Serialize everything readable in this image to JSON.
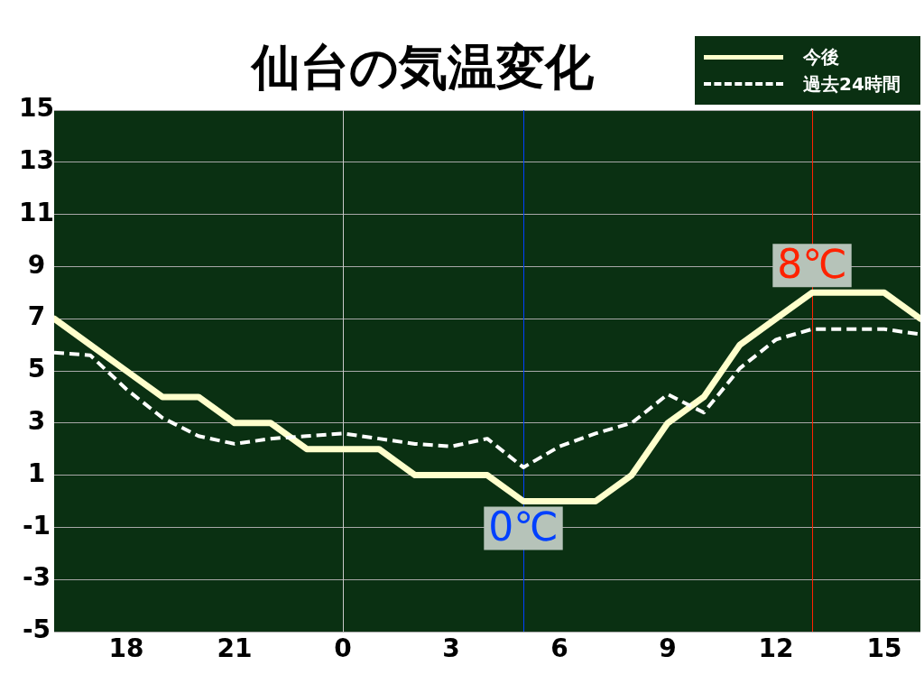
{
  "chart_data": {
    "type": "line",
    "title": "仙台の気温変化",
    "x": [
      "--01-01T16:00",
      "--01-01T17:00",
      "--01-01T18:00",
      "--01-01T19:00",
      "--01-01T20:00",
      "--01-01T21:00",
      "--01-01T22:00",
      "--01-01T23:00",
      "--01-02T00:00",
      "--01-02T01:00",
      "--01-02T02:00",
      "--01-02T03:00",
      "--01-02T04:00",
      "--01-02T05:00",
      "--01-02T06:00",
      "--01-02T07:00",
      "--01-02T08:00",
      "--01-02T09:00",
      "--01-02T10:00",
      "--01-02T11:00",
      "--01-02T12:00",
      "--01-02T13:00",
      "--01-02T14:00",
      "--01-02T15:00",
      "--01-02T16:00"
    ],
    "series": [
      {
        "name": "今後",
        "color": "#ffffcc",
        "values": [
          7,
          6,
          5,
          4,
          4,
          3,
          3,
          2,
          2,
          2,
          1,
          1,
          1,
          0,
          0,
          0,
          1,
          3,
          4,
          6,
          7,
          8,
          8,
          8,
          7
        ]
      },
      {
        "name": "過去24時間",
        "color": "#ffffff",
        "line_style": "dashed",
        "values": [
          5.7,
          5.6,
          4.3,
          3.2,
          2.5,
          2.2,
          2.4,
          2.5,
          2.6,
          2.4,
          2.2,
          2.1,
          2.4,
          1.3,
          2.1,
          2.6,
          3.0,
          4.1,
          3.4,
          5.1,
          6.2,
          6.6,
          6.6,
          6.6,
          6.4
        ]
      }
    ],
    "xlim": [
      "--01-01T16:00",
      "--01-02T16:00"
    ],
    "xticks": [
      {
        "value": "--01-01T18:00",
        "label": "18"
      },
      {
        "value": "--01-01T21:00",
        "label": "21"
      },
      {
        "value": "--01-02T00:00",
        "label": "0"
      },
      {
        "value": "--01-02T03:00",
        "label": "3"
      },
      {
        "value": "--01-02T06:00",
        "label": "6"
      },
      {
        "value": "--01-02T09:00",
        "label": "9"
      },
      {
        "value": "--01-02T12:00",
        "label": "12"
      },
      {
        "value": "--01-02T15:00",
        "label": "15"
      }
    ],
    "ylim": [
      -5,
      15
    ],
    "yticks": [
      -5,
      -3,
      -1,
      1,
      3,
      5,
      7,
      9,
      11,
      13,
      15
    ],
    "ref_lines": [
      {
        "axis": "x",
        "value": "--01-02T00:00",
        "color": "#c8c8c8"
      },
      {
        "axis": "x",
        "value": "--01-02T05:00",
        "color": "#0040ff"
      },
      {
        "axis": "x",
        "value": "--01-02T13:00",
        "color": "#ff2200"
      }
    ],
    "annotations": [
      {
        "text": "0℃",
        "x": "--01-02T05:00",
        "y": 0
      },
      {
        "text": "8℃",
        "x": "--01-02T13:00",
        "y": 8
      }
    ],
    "grid": "y",
    "legend": "top right"
  }
}
